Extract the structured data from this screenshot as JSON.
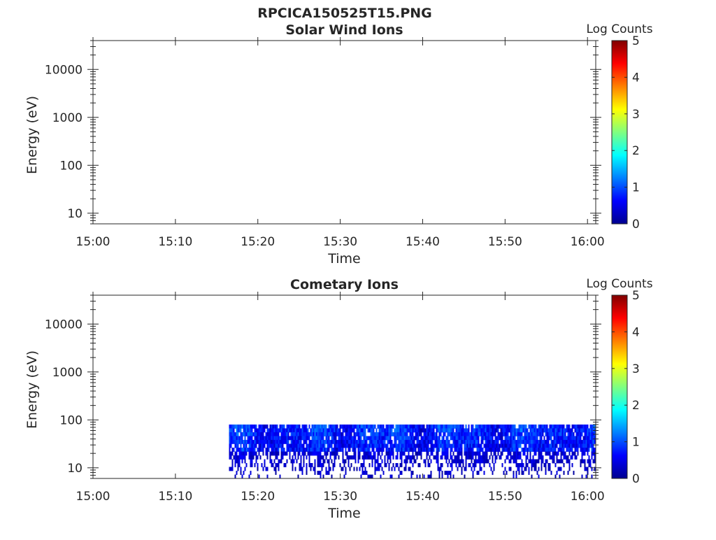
{
  "figure": {
    "title": "RPCICA150525T15.PNG"
  },
  "chart_data": [
    {
      "type": "heatmap",
      "title": "Solar Wind Ions",
      "xlabel": "Time",
      "ylabel": "Energy (eV)",
      "x_ticks": [
        "15:00",
        "15:10",
        "15:20",
        "15:30",
        "15:40",
        "15:50",
        "16:00"
      ],
      "xlim": [
        "15:00",
        "16:01"
      ],
      "y_scale": "log",
      "y_ticks": [
        10,
        100,
        1000,
        10000
      ],
      "y_tick_labels": [
        "10",
        "100",
        "1000",
        "10000"
      ],
      "ylim": [
        6,
        40000
      ],
      "colorbar": {
        "label": "Log Counts",
        "ticks": [
          0,
          1,
          2,
          3,
          4,
          5
        ],
        "range": [
          0,
          5
        ],
        "colormap": "jet"
      },
      "data_present": false
    },
    {
      "type": "heatmap",
      "title": "Cometary Ions",
      "xlabel": "Time",
      "ylabel": "Energy (eV)",
      "x_ticks": [
        "15:00",
        "15:10",
        "15:20",
        "15:30",
        "15:40",
        "15:50",
        "16:00"
      ],
      "xlim": [
        "15:00",
        "16:01"
      ],
      "y_scale": "log",
      "y_ticks": [
        10,
        100,
        1000,
        10000
      ],
      "y_tick_labels": [
        "10",
        "100",
        "1000",
        "10000"
      ],
      "ylim": [
        6,
        40000
      ],
      "colorbar": {
        "label": "Log Counts",
        "ticks": [
          0,
          1,
          2,
          3,
          4,
          5
        ],
        "range": [
          0,
          5
        ],
        "colormap": "jet"
      },
      "data_present": true,
      "signal_time_range": [
        "15:16",
        "16:01"
      ],
      "signal_energy_range_eV": [
        6,
        80
      ],
      "signal_log_counts_range": [
        0,
        1.3
      ]
    }
  ]
}
